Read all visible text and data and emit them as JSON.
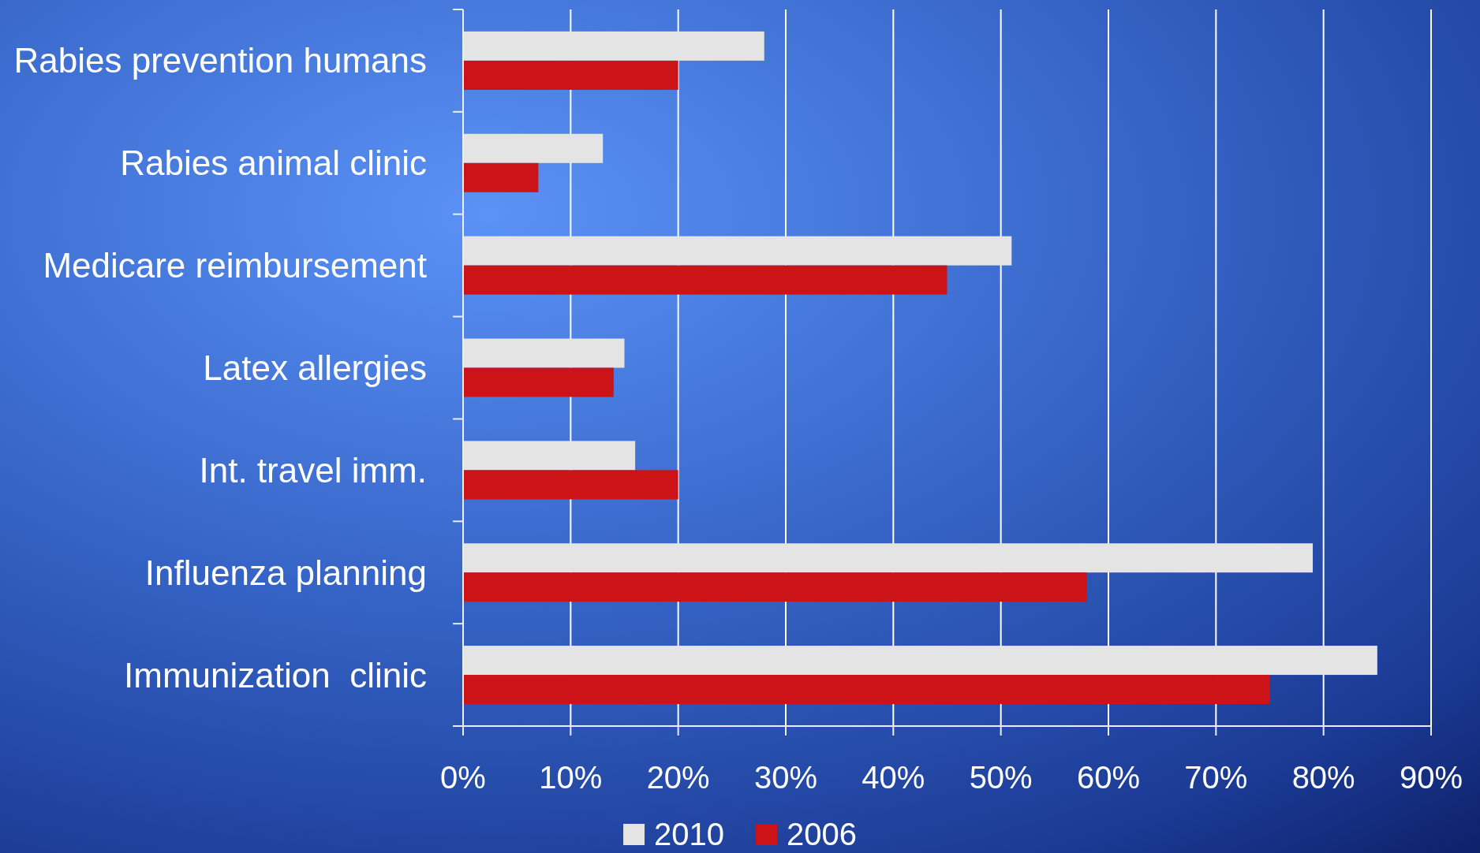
{
  "chart_data": {
    "type": "bar",
    "orientation": "horizontal",
    "categories": [
      "Rabies prevention humans",
      "Rabies animal clinic",
      "Medicare reimbursement",
      "Latex allergies",
      "Int. travel imm.",
      "Influenza planning",
      "Immunization  clinic"
    ],
    "series": [
      {
        "name": "2010",
        "color": "#e4e4e4",
        "values": [
          28,
          13,
          51,
          15,
          16,
          79,
          85
        ]
      },
      {
        "name": "2006",
        "color": "#cc1418",
        "values": [
          20,
          7,
          45,
          14,
          20,
          58,
          75
        ]
      }
    ],
    "xlim": [
      0,
      90
    ],
    "xticks": [
      {
        "value": 0,
        "label": "0%"
      },
      {
        "value": 10,
        "label": "10%"
      },
      {
        "value": 20,
        "label": "20%"
      },
      {
        "value": 30,
        "label": "30%"
      },
      {
        "value": 40,
        "label": "40%"
      },
      {
        "value": 50,
        "label": "50%"
      },
      {
        "value": 60,
        "label": "60%"
      },
      {
        "value": 70,
        "label": "70%"
      },
      {
        "value": 80,
        "label": "80%"
      },
      {
        "value": 90,
        "label": "90%"
      }
    ],
    "grid": "x",
    "legend": "bottom"
  }
}
